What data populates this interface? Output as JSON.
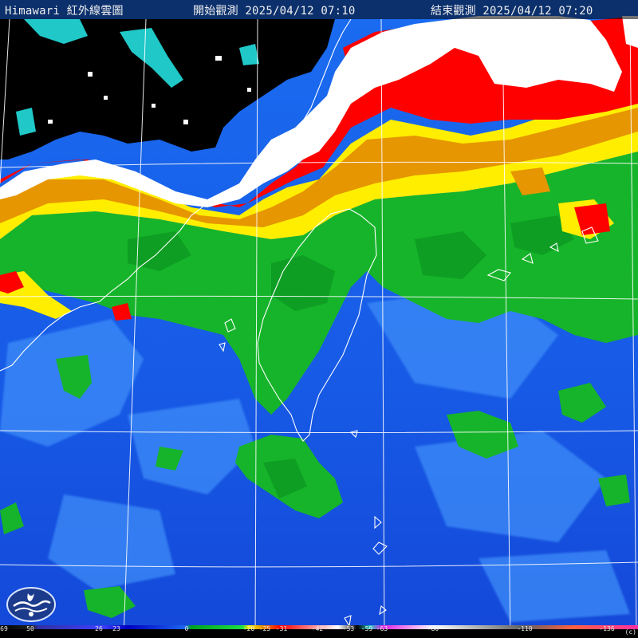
{
  "header": {
    "title": "Himawari 紅外線雲圖",
    "start": "開始觀測 2025/04/12 07:10",
    "end": "結束觀測 2025/04/12 07:20"
  },
  "logo": {
    "icon": "cwa-logo-icon"
  },
  "legend": {
    "ticks": [
      "69",
      "50",
      "26",
      "23",
      "0",
      "-20",
      "-25",
      "-31",
      "-42",
      "-53",
      "-59",
      "-63",
      "-80",
      "-110",
      "-136"
    ],
    "colors": {
      "deep_blue": "#0a1ea8",
      "blue": "#1e64f0",
      "green": "#14b428",
      "yellow": "#ffee00",
      "orange": "#e69600",
      "red": "#ff0000",
      "white": "#ffffff",
      "black": "#000000",
      "cyan": "#20c8c8"
    },
    "copyright": "(c)"
  }
}
